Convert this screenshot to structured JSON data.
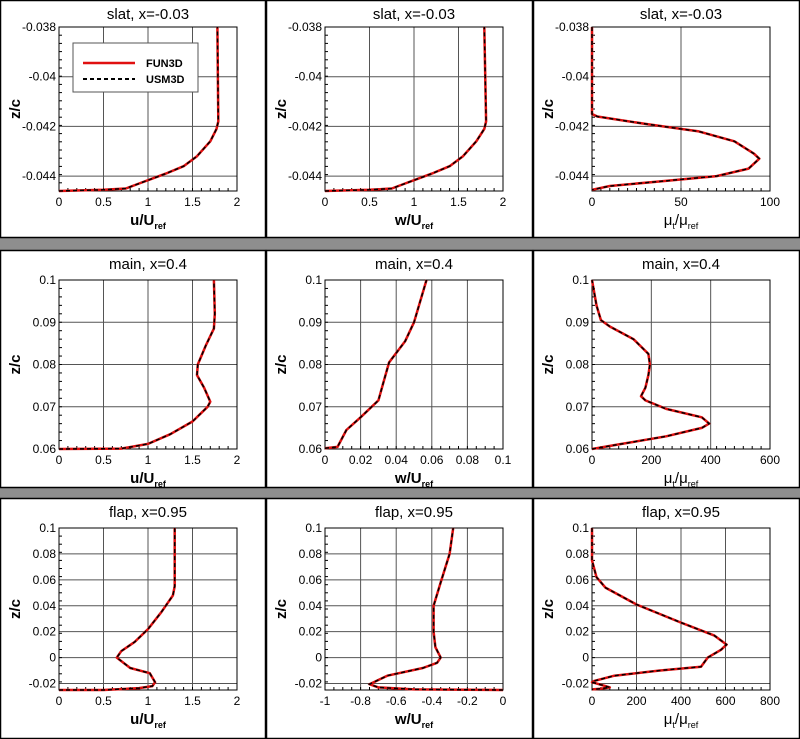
{
  "legend": {
    "placement": "top-left of first panel",
    "entries": [
      {
        "name": "FUN3D",
        "color": "#e01010",
        "style": "solid"
      },
      {
        "name": "USM3D",
        "color": "#000000",
        "style": "dashed"
      }
    ]
  },
  "chart_data": [
    {
      "type": "line",
      "title": "slat, x=-0.03",
      "ylabel": "z/c",
      "xlabel_parts": [
        {
          "t": "u/U"
        },
        {
          "t": "ref",
          "sub": true
        }
      ],
      "xlim": [
        0,
        2
      ],
      "xticks": [
        0,
        0.5,
        1,
        1.5,
        2
      ],
      "xtick_labels": [
        "0",
        "0.5",
        "1",
        "1.5",
        "2"
      ],
      "ylim": [
        -0.0446,
        -0.038
      ],
      "yticks": [
        -0.044,
        -0.042,
        -0.04,
        -0.038
      ],
      "ytick_labels": [
        "-0.044",
        "-0.042",
        "-0.04",
        "-0.038"
      ],
      "grid": true,
      "curve": [
        [
          0,
          -0.0446
        ],
        [
          0.5,
          -0.04455
        ],
        [
          0.75,
          -0.0445
        ],
        [
          0.9,
          -0.0443
        ],
        [
          1.05,
          -0.0441
        ],
        [
          1.2,
          -0.0439
        ],
        [
          1.4,
          -0.0436
        ],
        [
          1.55,
          -0.0432
        ],
        [
          1.7,
          -0.0426
        ],
        [
          1.77,
          -0.0421
        ],
        [
          1.79,
          -0.0418
        ],
        [
          1.78,
          -0.038
        ]
      ]
    },
    {
      "type": "line",
      "title": "slat, x=-0.03",
      "ylabel": "z/c",
      "xlabel_parts": [
        {
          "t": "w/U"
        },
        {
          "t": "ref",
          "sub": true
        }
      ],
      "xlim": [
        0,
        2
      ],
      "xticks": [
        0,
        0.5,
        1,
        1.5,
        2
      ],
      "xtick_labels": [
        "0",
        "0.5",
        "1",
        "1.5",
        "2"
      ],
      "ylim": [
        -0.0446,
        -0.038
      ],
      "yticks": [
        -0.044,
        -0.042,
        -0.04,
        -0.038
      ],
      "ytick_labels": [
        "-0.044",
        "-0.042",
        "-0.04",
        "-0.038"
      ],
      "grid": true,
      "curve": [
        [
          0,
          -0.0446
        ],
        [
          0.5,
          -0.04455
        ],
        [
          0.75,
          -0.0445
        ],
        [
          0.9,
          -0.0443
        ],
        [
          1.05,
          -0.0441
        ],
        [
          1.2,
          -0.0439
        ],
        [
          1.4,
          -0.0436
        ],
        [
          1.55,
          -0.0432
        ],
        [
          1.7,
          -0.0426
        ],
        [
          1.79,
          -0.0421
        ],
        [
          1.81,
          -0.0418
        ],
        [
          1.79,
          -0.038
        ]
      ]
    },
    {
      "type": "line",
      "title": "slat, x=-0.03",
      "ylabel": "z/c",
      "xlabel_parts": [
        {
          "t": "μ"
        },
        {
          "t": "t",
          "sub": true
        },
        {
          "t": "/μ"
        },
        {
          "t": "ref",
          "sub": true
        }
      ],
      "xlim": [
        0,
        100
      ],
      "xticks": [
        0,
        50,
        100
      ],
      "xtick_labels": [
        "0",
        "50",
        "100"
      ],
      "ylim": [
        -0.0446,
        -0.038
      ],
      "yticks": [
        -0.044,
        -0.042,
        -0.04,
        -0.038
      ],
      "ytick_labels": [
        "-0.044",
        "-0.042",
        "-0.04",
        "-0.038"
      ],
      "grid": true,
      "curve": [
        [
          0,
          -0.038
        ],
        [
          0,
          -0.0415
        ],
        [
          3,
          -0.0416
        ],
        [
          30,
          -0.0419
        ],
        [
          60,
          -0.0422
        ],
        [
          80,
          -0.0426
        ],
        [
          91,
          -0.0431
        ],
        [
          94,
          -0.0433
        ],
        [
          88,
          -0.0437
        ],
        [
          70,
          -0.044
        ],
        [
          40,
          -0.0442
        ],
        [
          10,
          -0.0444
        ],
        [
          0,
          -0.04455
        ]
      ]
    },
    {
      "type": "line",
      "title": "main, x=0.4",
      "ylabel": "z/c",
      "xlabel_parts": [
        {
          "t": "u/U"
        },
        {
          "t": "ref",
          "sub": true
        }
      ],
      "xlim": [
        0,
        2
      ],
      "xticks": [
        0,
        0.5,
        1,
        1.5,
        2
      ],
      "xtick_labels": [
        "0",
        "0.5",
        "1",
        "1.5",
        "2"
      ],
      "ylim": [
        0.06,
        0.1
      ],
      "yticks": [
        0.06,
        0.07,
        0.08,
        0.09,
        0.1
      ],
      "ytick_labels": [
        "0.06",
        "0.07",
        "0.08",
        "0.09",
        "0.1"
      ],
      "grid": true,
      "curve": [
        [
          0,
          0.06
        ],
        [
          0.7,
          0.0601
        ],
        [
          1.0,
          0.0612
        ],
        [
          1.25,
          0.0635
        ],
        [
          1.5,
          0.0665
        ],
        [
          1.67,
          0.07
        ],
        [
          1.7,
          0.0712
        ],
        [
          1.63,
          0.0745
        ],
        [
          1.55,
          0.0775
        ],
        [
          1.56,
          0.08
        ],
        [
          1.65,
          0.0845
        ],
        [
          1.74,
          0.0885
        ],
        [
          1.75,
          0.092
        ],
        [
          1.74,
          0.1
        ]
      ]
    },
    {
      "type": "line",
      "title": "main, x=0.4",
      "ylabel": "z/c",
      "xlabel_parts": [
        {
          "t": "w/U"
        },
        {
          "t": "ref",
          "sub": true
        }
      ],
      "xlim": [
        0,
        0.1
      ],
      "xticks": [
        0,
        0.02,
        0.04,
        0.06,
        0.08,
        0.1
      ],
      "xtick_labels": [
        "0",
        "0.02",
        "0.04",
        "0.06",
        "0.08",
        "0.1"
      ],
      "ylim": [
        0.06,
        0.1
      ],
      "yticks": [
        0.06,
        0.07,
        0.08,
        0.09,
        0.1
      ],
      "ytick_labels": [
        "0.06",
        "0.07",
        "0.08",
        "0.09",
        "0.1"
      ],
      "grid": true,
      "curve": [
        [
          0,
          0.0602
        ],
        [
          0.007,
          0.0605
        ],
        [
          0.012,
          0.0645
        ],
        [
          0.02,
          0.0675
        ],
        [
          0.03,
          0.0715
        ],
        [
          0.033,
          0.076
        ],
        [
          0.036,
          0.0805
        ],
        [
          0.045,
          0.0855
        ],
        [
          0.05,
          0.09
        ],
        [
          0.057,
          0.1
        ]
      ]
    },
    {
      "type": "line",
      "title": "main, x=0.4",
      "ylabel": "z/c",
      "xlabel_parts": [
        {
          "t": "μ"
        },
        {
          "t": "t",
          "sub": true
        },
        {
          "t": "/μ"
        },
        {
          "t": "ref",
          "sub": true
        }
      ],
      "xlim": [
        0,
        600
      ],
      "xticks": [
        0,
        200,
        400,
        600
      ],
      "xtick_labels": [
        "0",
        "200",
        "400",
        "600"
      ],
      "ylim": [
        0.06,
        0.1
      ],
      "yticks": [
        0.06,
        0.07,
        0.08,
        0.09,
        0.1
      ],
      "ytick_labels": [
        "0.06",
        "0.07",
        "0.08",
        "0.09",
        "0.1"
      ],
      "grid": true,
      "curve": [
        [
          0,
          0.06
        ],
        [
          100,
          0.0612
        ],
        [
          250,
          0.063
        ],
        [
          370,
          0.065
        ],
        [
          395,
          0.066
        ],
        [
          370,
          0.0675
        ],
        [
          250,
          0.0695
        ],
        [
          180,
          0.0715
        ],
        [
          165,
          0.0725
        ],
        [
          180,
          0.0745
        ],
        [
          190,
          0.0775
        ],
        [
          195,
          0.08
        ],
        [
          190,
          0.0825
        ],
        [
          140,
          0.086
        ],
        [
          60,
          0.089
        ],
        [
          30,
          0.0905
        ],
        [
          15,
          0.094
        ],
        [
          0,
          0.1
        ]
      ]
    },
    {
      "type": "line",
      "title": "flap, x=0.95",
      "ylabel": "z/c",
      "xlabel_parts": [
        {
          "t": "u/U"
        },
        {
          "t": "ref",
          "sub": true
        }
      ],
      "xlim": [
        0,
        2
      ],
      "xticks": [
        0,
        0.5,
        1,
        1.5,
        2
      ],
      "xtick_labels": [
        "0",
        "0.5",
        "1",
        "1.5",
        "2"
      ],
      "ylim": [
        -0.025,
        0.1
      ],
      "yticks": [
        -0.02,
        0,
        0.02,
        0.04,
        0.06,
        0.08,
        0.1
      ],
      "ytick_labels": [
        "-0.02",
        "0",
        "0.02",
        "0.04",
        "0.06",
        "0.08",
        "0.1"
      ],
      "grid": true,
      "curve": [
        [
          0,
          -0.025
        ],
        [
          0.5,
          -0.025
        ],
        [
          0.9,
          -0.0235
        ],
        [
          1.05,
          -0.022
        ],
        [
          1.08,
          -0.019
        ],
        [
          1.02,
          -0.012
        ],
        [
          0.8,
          -0.008
        ],
        [
          0.65,
          0
        ],
        [
          0.7,
          0.005
        ],
        [
          0.85,
          0.012
        ],
        [
          1.0,
          0.022
        ],
        [
          1.15,
          0.035
        ],
        [
          1.28,
          0.048
        ],
        [
          1.3,
          0.055
        ],
        [
          1.3,
          0.1
        ]
      ]
    },
    {
      "type": "line",
      "title": "flap, x=0.95",
      "ylabel": "z/c",
      "xlabel_parts": [
        {
          "t": "w/U"
        },
        {
          "t": "ref",
          "sub": true
        }
      ],
      "xlim": [
        -1,
        0
      ],
      "xticks": [
        -1,
        -0.8,
        -0.6,
        -0.4,
        -0.2,
        0
      ],
      "xtick_labels": [
        "-1",
        "-0.8",
        "-0.6",
        "-0.4",
        "-0.2",
        "0"
      ],
      "ylim": [
        -0.025,
        0.1
      ],
      "yticks": [
        -0.02,
        0,
        0.02,
        0.04,
        0.06,
        0.08,
        0.1
      ],
      "ytick_labels": [
        "-0.02",
        "0",
        "0.02",
        "0.04",
        "0.06",
        "0.08",
        "0.1"
      ],
      "grid": true,
      "curve": [
        [
          0,
          -0.025
        ],
        [
          -0.5,
          -0.0245
        ],
        [
          -0.7,
          -0.023
        ],
        [
          -0.75,
          -0.0205
        ],
        [
          -0.65,
          -0.014
        ],
        [
          -0.45,
          -0.008
        ],
        [
          -0.37,
          -0.004
        ],
        [
          -0.35,
          0
        ],
        [
          -0.38,
          0.008
        ],
        [
          -0.39,
          0.02
        ],
        [
          -0.39,
          0.04
        ],
        [
          -0.35,
          0.058
        ],
        [
          -0.3,
          0.08
        ],
        [
          -0.28,
          0.1
        ]
      ]
    },
    {
      "type": "line",
      "title": "flap, x=0.95",
      "ylabel": "z/c",
      "xlabel_parts": [
        {
          "t": "μ"
        },
        {
          "t": "t",
          "sub": true
        },
        {
          "t": "/μ"
        },
        {
          "t": "ref",
          "sub": true
        }
      ],
      "xlim": [
        0,
        800
      ],
      "xticks": [
        0,
        200,
        400,
        600,
        800
      ],
      "xtick_labels": [
        "0",
        "200",
        "400",
        "600",
        "800"
      ],
      "ylim": [
        -0.025,
        0.1
      ],
      "yticks": [
        -0.02,
        0,
        0.02,
        0.04,
        0.06,
        0.08,
        0.1
      ],
      "ytick_labels": [
        "-0.02",
        "0",
        "0.02",
        "0.04",
        "0.06",
        "0.08",
        "0.1"
      ],
      "grid": true,
      "curve": [
        [
          0,
          0.1
        ],
        [
          0,
          0.075
        ],
        [
          20,
          0.062
        ],
        [
          60,
          0.054
        ],
        [
          200,
          0.041
        ],
        [
          400,
          0.027
        ],
        [
          550,
          0.017
        ],
        [
          605,
          0.01
        ],
        [
          580,
          0.006
        ],
        [
          520,
          0
        ],
        [
          490,
          -0.007
        ],
        [
          300,
          -0.01
        ],
        [
          100,
          -0.014
        ],
        [
          10,
          -0.018
        ],
        [
          0,
          -0.019
        ],
        [
          60,
          -0.022
        ],
        [
          80,
          -0.023
        ],
        [
          40,
          -0.024
        ],
        [
          0,
          -0.0245
        ]
      ]
    }
  ]
}
